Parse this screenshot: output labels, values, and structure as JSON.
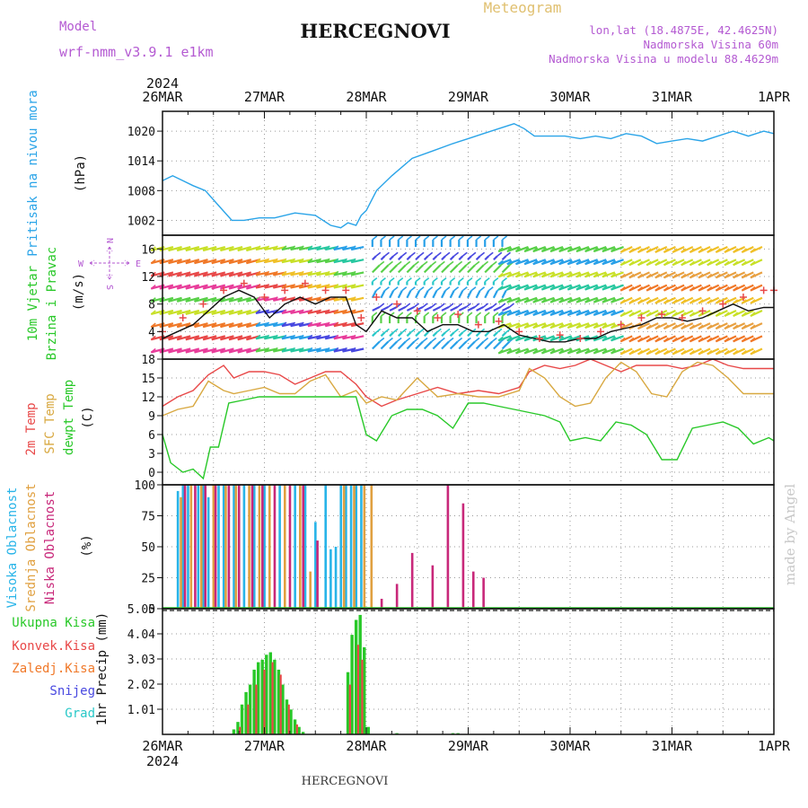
{
  "header": {
    "model_label": "Model",
    "model_value": "wrf-nmm_v3.9.1 e1km",
    "station": "HERCEGNOVI",
    "meteogram": "Meteogram",
    "lonlat": "lon,lat (18.4875E, 42.4625N)",
    "elevation": "Nadmorska Visina 60m",
    "model_elevation": "Nadmorska Visina u modelu 88.4629m",
    "year": "2024",
    "watermark": "made by Angel",
    "footer_station": "HERCEGNOVI"
  },
  "time_axis": {
    "ticks": [
      "26MAR",
      "27MAR",
      "28MAR",
      "29MAR",
      "30MAR",
      "31MAR",
      "1APR"
    ],
    "range_days": [
      0,
      6
    ]
  },
  "compass": {
    "n": "N",
    "s": "S",
    "e": "E",
    "w": "W"
  },
  "colors": {
    "pressure": "#2aa4e8",
    "temp2m": "#e84848",
    "sfc": "#d8a840",
    "dewpt": "#28c828",
    "high_cloud": "#28b4e8",
    "mid_cloud": "#e0a040",
    "low_cloud": "#c8287a",
    "total_precip": "#28c828",
    "conv_precip": "#e84848",
    "frz_precip": "#f07828",
    "snow": "#4848e0",
    "hail": "#28c8c8",
    "wind_labels": "#28c828",
    "compass": "#b45ad2",
    "title_purple": "#b45ad2"
  },
  "chart_data": [
    {
      "type": "line",
      "title": "",
      "ylabel_lines": [
        "Pritisak na nivou mora",
        "(hPa)"
      ],
      "ylim": [
        999,
        1024
      ],
      "yticks": [
        "1002",
        "1008",
        "1014",
        "1020"
      ],
      "series": [
        {
          "x": [
            0,
            0.1,
            0.2,
            0.3,
            0.42,
            0.55,
            0.68,
            0.8,
            0.95,
            1.1,
            1.3,
            1.5,
            1.65,
            1.75,
            1.82,
            1.9,
            1.95,
            2.0,
            2.1,
            2.25,
            2.45,
            2.65,
            2.85,
            3.0,
            3.15,
            3.3,
            3.45,
            3.55,
            3.65,
            3.8,
            3.95,
            4.1,
            4.25,
            4.4,
            4.55,
            4.7,
            4.85,
            5.0,
            5.15,
            5.3,
            5.45,
            5.6,
            5.75,
            5.9,
            6.0
          ],
          "values": [
            1010,
            1011,
            1010,
            1009,
            1008,
            1005,
            1002,
            1002,
            1002.5,
            1002.5,
            1003.5,
            1003,
            1001,
            1000.5,
            1001.5,
            1001,
            1003,
            1004,
            1008,
            1011,
            1014.5,
            1016,
            1017.5,
            1018.5,
            1019.5,
            1020.5,
            1021.5,
            1020.5,
            1019,
            1019,
            1019,
            1018.5,
            1019,
            1018.5,
            1019.5,
            1019,
            1017.5,
            1018,
            1018.5,
            1018,
            1019,
            1020,
            1019,
            1020,
            1019.5
          ]
        }
      ]
    },
    {
      "type": "line",
      "title": "",
      "ylabel_lines": [
        "10m Vjetar",
        "Brzina i Pravac",
        "(m/s)"
      ],
      "ylim": [
        0,
        18
      ],
      "yticks": [
        "4",
        "8",
        "12",
        "16"
      ],
      "series": [
        {
          "name": "speed",
          "x": [
            0,
            0.15,
            0.3,
            0.45,
            0.6,
            0.75,
            0.9,
            1.05,
            1.2,
            1.35,
            1.5,
            1.65,
            1.8,
            1.9,
            2.0,
            2.15,
            2.3,
            2.45,
            2.6,
            2.75,
            2.9,
            3.05,
            3.2,
            3.35,
            3.5,
            3.65,
            3.8,
            3.95,
            4.1,
            4.25,
            4.4,
            4.55,
            4.7,
            4.85,
            5.0,
            5.15,
            5.3,
            5.45,
            5.6,
            5.75,
            5.9,
            6.0
          ],
          "values": [
            3,
            4,
            5,
            7,
            9,
            10,
            9,
            6,
            8,
            9,
            8,
            9,
            9,
            5,
            4,
            7,
            6,
            6,
            4,
            5,
            5,
            4,
            4,
            5,
            3.5,
            3,
            2.5,
            2.5,
            3,
            3,
            4,
            4.5,
            5,
            6,
            6,
            5.5,
            6,
            7,
            8,
            7,
            7.5,
            7.5
          ]
        },
        {
          "name": "gusts",
          "x": [
            0,
            0.2,
            0.4,
            0.6,
            0.8,
            1.0,
            1.2,
            1.4,
            1.6,
            1.8,
            1.95,
            2.1,
            2.3,
            2.5,
            2.7,
            2.9,
            3.1,
            3.3,
            3.5,
            3.7,
            3.9,
            4.1,
            4.3,
            4.5,
            4.7,
            4.9,
            5.1,
            5.3,
            5.5,
            5.7,
            5.9,
            6.0
          ],
          "values": [
            4,
            6,
            8,
            10,
            11,
            9,
            10,
            11,
            10,
            10,
            6,
            9,
            8,
            7,
            6,
            6.5,
            5,
            5.5,
            4,
            3,
            3.5,
            3,
            4,
            5,
            6,
            6.5,
            6,
            7,
            8,
            9,
            10,
            10
          ]
        }
      ]
    },
    {
      "type": "line",
      "title": "",
      "ylabel_lines": [
        "2m Temp",
        "SFC Temp",
        "dewpt Temp",
        "(C)"
      ],
      "ylim": [
        -2,
        18
      ],
      "yticks": [
        "0",
        "3",
        "6",
        "9",
        "12",
        "15",
        "18"
      ],
      "series": [
        {
          "name": "2m Temp",
          "x": [
            0,
            0.15,
            0.3,
            0.45,
            0.6,
            0.7,
            0.85,
            1.0,
            1.15,
            1.3,
            1.45,
            1.6,
            1.75,
            1.9,
            2.0,
            2.15,
            2.3,
            2.5,
            2.7,
            2.9,
            3.1,
            3.3,
            3.5,
            3.6,
            3.75,
            3.9,
            4.05,
            4.2,
            4.35,
            4.5,
            4.65,
            4.8,
            4.95,
            5.1,
            5.25,
            5.4,
            5.55,
            5.7,
            5.85,
            6.0
          ],
          "values": [
            10.5,
            12,
            13,
            15.5,
            17,
            15,
            16,
            16,
            15.5,
            14,
            15,
            16,
            16,
            14,
            12,
            10.5,
            11.5,
            12.5,
            13.5,
            12.5,
            13,
            12.5,
            13.5,
            16,
            17,
            16.5,
            17,
            18,
            17,
            16,
            17,
            17,
            17,
            16.5,
            17,
            18,
            17,
            16.5,
            16.5,
            16.5
          ]
        },
        {
          "name": "SFC Temp",
          "x": [
            0,
            0.15,
            0.3,
            0.45,
            0.6,
            0.7,
            0.85,
            1.0,
            1.15,
            1.3,
            1.45,
            1.6,
            1.75,
            1.9,
            2.0,
            2.15,
            2.3,
            2.5,
            2.7,
            2.9,
            3.1,
            3.3,
            3.5,
            3.6,
            3.75,
            3.9,
            4.05,
            4.2,
            4.35,
            4.5,
            4.65,
            4.8,
            4.95,
            5.1,
            5.25,
            5.4,
            5.55,
            5.7,
            5.85,
            6.0
          ],
          "values": [
            9,
            10,
            10.5,
            14.5,
            13,
            12.5,
            13,
            13.5,
            12.5,
            12.5,
            14.5,
            15.5,
            12,
            13,
            11,
            12,
            11.5,
            15,
            12,
            12.5,
            12,
            12,
            13,
            16.5,
            15,
            12,
            10.5,
            11,
            15,
            17.5,
            16,
            12.5,
            12,
            16,
            17.5,
            17,
            15,
            12.5,
            12.5,
            12.5
          ]
        },
        {
          "name": "dewpt Temp",
          "x": [
            0,
            0.08,
            0.2,
            0.3,
            0.4,
            0.47,
            0.55,
            0.65,
            0.8,
            0.95,
            1.1,
            1.2,
            1.35,
            1.5,
            1.65,
            1.8,
            1.9,
            2.0,
            2.1,
            2.25,
            2.4,
            2.55,
            2.7,
            2.85,
            3.0,
            3.15,
            3.3,
            3.45,
            3.6,
            3.75,
            3.9,
            4.0,
            4.15,
            4.3,
            4.45,
            4.6,
            4.75,
            4.9,
            5.05,
            5.2,
            5.35,
            5.5,
            5.65,
            5.8,
            5.95,
            6.0
          ],
          "values": [
            6,
            1.5,
            0,
            0.5,
            -1,
            4,
            4,
            11,
            11.5,
            12,
            12,
            12,
            12,
            12,
            12,
            12,
            12,
            6,
            5,
            9,
            10,
            10,
            9,
            7,
            11,
            11,
            10.5,
            10,
            9.5,
            9,
            8,
            5,
            5.5,
            5,
            8,
            7.5,
            6,
            2,
            2,
            7,
            7.5,
            8,
            7,
            4.5,
            5.5,
            5
          ]
        }
      ]
    },
    {
      "type": "bar",
      "title": "",
      "ylabel_lines": [
        "Visoka Oblacnost",
        "Srednja Oblacnost",
        "Niska Oblacnost",
        "(%)"
      ],
      "ylim": [
        0,
        100
      ],
      "yticks": [
        "0",
        "25",
        "50",
        "75",
        "100"
      ],
      "series": [
        {
          "name": "Visoka Oblacnost",
          "x": [
            0.15,
            0.2,
            0.25,
            0.35,
            0.4,
            0.45,
            0.55,
            0.6,
            0.7,
            0.8,
            0.9,
            1.0,
            1.15,
            1.3,
            1.4,
            1.5,
            1.6,
            1.65,
            1.7,
            1.75,
            1.8,
            1.85,
            1.9,
            1.95
          ],
          "values": [
            95,
            100,
            100,
            100,
            100,
            90,
            100,
            100,
            100,
            100,
            100,
            100,
            100,
            100,
            100,
            70,
            100,
            48,
            50,
            100,
            100,
            100,
            100,
            100
          ]
        },
        {
          "name": "Srednja Oblacnost",
          "x": [
            0.18,
            0.28,
            0.38,
            0.5,
            0.62,
            0.72,
            0.85,
            0.95,
            1.05,
            1.2,
            1.35,
            1.45,
            1.78,
            1.88,
            1.98,
            2.05
          ],
          "values": [
            90,
            100,
            100,
            100,
            100,
            100,
            100,
            100,
            100,
            100,
            100,
            30,
            100,
            100,
            100,
            100
          ]
        },
        {
          "name": "Niska Oblacnost",
          "x": [
            0.22,
            0.32,
            0.42,
            0.52,
            0.65,
            0.75,
            0.88,
            0.98,
            1.1,
            1.25,
            1.38,
            1.52,
            2.15,
            2.3,
            2.45,
            2.65,
            2.8,
            2.95,
            3.05,
            3.15
          ],
          "values": [
            100,
            100,
            100,
            100,
            100,
            100,
            100,
            100,
            100,
            100,
            100,
            55,
            8,
            20,
            45,
            35,
            100,
            85,
            30,
            25
          ]
        }
      ]
    },
    {
      "type": "bar",
      "title": "",
      "ylabel_lines": [
        "1hr Precip (mm)"
      ],
      "legend_entries": [
        "Ukupna Kisa",
        "Konvek.Kisa",
        "Zaledj.Kisa",
        "Snijeg",
        "Grad"
      ],
      "ylim": [
        0,
        5.05
      ],
      "yticks": [
        "1.01",
        "2.02",
        "3.03",
        "4.04",
        "5.05"
      ],
      "series": [
        {
          "name": "Ukupna Kisa",
          "x": [
            0.7,
            0.74,
            0.78,
            0.82,
            0.86,
            0.9,
            0.94,
            0.98,
            1.02,
            1.06,
            1.1,
            1.14,
            1.18,
            1.22,
            1.26,
            1.3,
            1.34,
            1.38,
            1.82,
            1.86,
            1.9,
            1.94,
            1.98,
            2.02,
            2.3,
            2.85,
            2.9
          ],
          "values": [
            0.2,
            0.5,
            1.2,
            1.7,
            2.0,
            2.6,
            2.9,
            3.0,
            3.2,
            3.3,
            3.0,
            2.6,
            2.0,
            1.4,
            1.0,
            0.6,
            0.3,
            0.1,
            2.5,
            4.0,
            4.6,
            4.8,
            3.5,
            0.3,
            0.05,
            0.05,
            0.05
          ]
        },
        {
          "name": "Konvek.Kisa",
          "x": [
            0.76,
            0.84,
            0.92,
            1.0,
            1.08,
            1.16,
            1.24,
            1.32,
            1.84,
            1.92,
            1.96
          ],
          "values": [
            0.3,
            1.2,
            2.0,
            2.6,
            2.9,
            2.4,
            1.2,
            0.4,
            2.0,
            3.6,
            3.0
          ]
        }
      ]
    }
  ]
}
